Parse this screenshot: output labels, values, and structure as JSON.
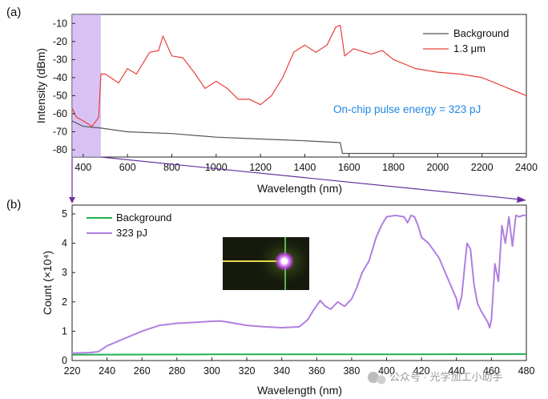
{
  "figure": {
    "watermark": "公众号 · 光学加工小助手",
    "inset_image": "microscope-spot-photo"
  },
  "chart_data": [
    {
      "panel_label": "(a)",
      "type": "line",
      "title": "",
      "xlabel": "Wavelength (nm)",
      "ylabel": "Intensity (dBm)",
      "xlim": [
        350,
        2400
      ],
      "ylim": [
        -84,
        -5
      ],
      "xticks": [
        "400",
        "600",
        "800",
        "1000",
        "1200",
        "1400",
        "1600",
        "1800",
        "2000",
        "2200",
        "2400"
      ],
      "yticks": [
        "-10",
        "-20",
        "-30",
        "-40",
        "-50",
        "-60",
        "-70",
        "-80"
      ],
      "annotation": "On-chip pulse energy = 323 pJ",
      "highlight_region": [
        350,
        480
      ],
      "legend_position": "top-right",
      "series": [
        {
          "name": "Background",
          "color": "#555555",
          "x": [
            350,
            400,
            480,
            600,
            800,
            1000,
            1200,
            1400,
            1560,
            1570,
            1800,
            2000,
            2200,
            2400
          ],
          "y": [
            -64,
            -67,
            -68,
            -70,
            -71,
            -73,
            -74,
            -75,
            -76,
            -82,
            -82,
            -82,
            -82,
            -82
          ]
        },
        {
          "name": "1.3 μm",
          "color": "#e8403a",
          "x": [
            350,
            370,
            400,
            440,
            470,
            480,
            500,
            560,
            600,
            640,
            700,
            740,
            760,
            800,
            850,
            900,
            950,
            1000,
            1050,
            1100,
            1150,
            1200,
            1250,
            1300,
            1350,
            1400,
            1450,
            1500,
            1540,
            1560,
            1580,
            1620,
            1700,
            1750,
            1800,
            1900,
            2000,
            2100,
            2200,
            2300,
            2400
          ],
          "y": [
            -57,
            -62,
            -64,
            -67,
            -62,
            -38,
            -38,
            -43,
            -35,
            -38,
            -26,
            -25,
            -17,
            -28,
            -29,
            -37,
            -46,
            -42,
            -46,
            -52,
            -52,
            -55,
            -50,
            -40,
            -26,
            -22,
            -26,
            -22,
            -12,
            -11,
            -28,
            -24,
            -27,
            -25,
            -30,
            -35,
            -37,
            -38,
            -40,
            -45,
            -50
          ]
        }
      ]
    },
    {
      "panel_label": "(b)",
      "type": "line",
      "title": "",
      "xlabel": "Wavelength (nm)",
      "ylabel": "Count (×10⁴)",
      "xlim": [
        220,
        480
      ],
      "ylim": [
        0,
        5.3
      ],
      "xticks": [
        "220",
        "240",
        "260",
        "280",
        "300",
        "320",
        "340",
        "360",
        "380",
        "400",
        "420",
        "440",
        "460",
        "480"
      ],
      "yticks": [
        "0",
        "1",
        "2",
        "3",
        "4",
        "5"
      ],
      "legend_position": "top-left",
      "series": [
        {
          "name": "Background",
          "color": "#22b04f",
          "x": [
            220,
            300,
            400,
            480
          ],
          "y": [
            0.2,
            0.21,
            0.21,
            0.22
          ]
        },
        {
          "name": "323 pJ",
          "color": "#b07fe0",
          "x": [
            220,
            230,
            235,
            240,
            250,
            260,
            270,
            280,
            290,
            300,
            305,
            310,
            320,
            330,
            340,
            350,
            355,
            358,
            362,
            365,
            368,
            372,
            376,
            380,
            383,
            386,
            390,
            394,
            397,
            400,
            405,
            410,
            412,
            414,
            416,
            418,
            420,
            424,
            430,
            435,
            440,
            441,
            443,
            446,
            448,
            450,
            452,
            454,
            456,
            458,
            459,
            460,
            462,
            464,
            466,
            468,
            470,
            472,
            474,
            476,
            478,
            480
          ],
          "y": [
            0.25,
            0.27,
            0.3,
            0.5,
            0.75,
            1.0,
            1.2,
            1.27,
            1.3,
            1.34,
            1.35,
            1.3,
            1.2,
            1.15,
            1.12,
            1.15,
            1.4,
            1.7,
            2.05,
            1.85,
            1.75,
            2.0,
            1.85,
            2.1,
            2.5,
            3.0,
            3.4,
            4.2,
            4.6,
            4.9,
            4.95,
            4.9,
            4.7,
            4.95,
            4.9,
            4.6,
            4.2,
            4.0,
            3.5,
            2.8,
            2.1,
            1.75,
            2.2,
            4.0,
            3.8,
            2.6,
            1.95,
            1.7,
            1.5,
            1.3,
            1.12,
            1.4,
            3.3,
            2.7,
            4.6,
            4.0,
            4.9,
            3.9,
            4.95,
            4.9,
            4.95,
            4.95
          ]
        }
      ]
    }
  ]
}
